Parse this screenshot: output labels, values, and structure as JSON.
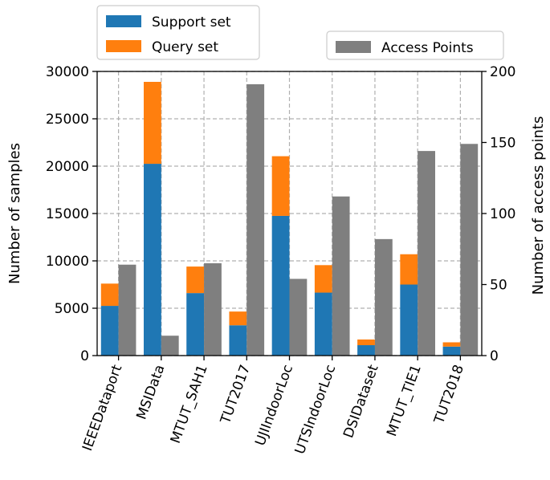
{
  "chart_data": {
    "type": "bar",
    "title": "",
    "categories": [
      "IEEEDataport",
      "MSIData",
      "MTUT_SAH1",
      "TUT2017",
      "UJIIndoorLoc",
      "UTSIndoorLoc",
      "DSIDataset",
      "MTUT_TIE1",
      "TUT2018"
    ],
    "left_axis": {
      "label": "Number of samples",
      "ylim": [
        0,
        30000
      ],
      "ticks": [
        0,
        5000,
        10000,
        15000,
        20000,
        25000,
        30000
      ],
      "tick_labels": [
        "0",
        "5000",
        "10000",
        "15000",
        "20000",
        "25000",
        "30000"
      ]
    },
    "right_axis": {
      "label": "Number of access points",
      "ylim": [
        0,
        200
      ],
      "ticks": [
        0,
        50,
        100,
        150,
        200
      ],
      "tick_labels": [
        "0",
        "50",
        "100",
        "150",
        "200"
      ]
    },
    "series": [
      {
        "name": "Support set",
        "axis": "left",
        "stack": "samples",
        "color": "#1f77b4",
        "values": [
          5250,
          20250,
          6600,
          3200,
          14750,
          6650,
          1100,
          7500,
          950
        ]
      },
      {
        "name": "Query set",
        "axis": "left",
        "stack": "samples",
        "color": "#ff7f0e",
        "values": [
          2350,
          8650,
          2800,
          1450,
          6300,
          2900,
          600,
          3200,
          450
        ]
      },
      {
        "name": "Access Points",
        "axis": "right",
        "color": "#7f7f7f",
        "values": [
          64,
          14,
          65,
          191,
          54,
          112,
          82,
          144,
          149
        ]
      }
    ],
    "grid": true,
    "legend": {
      "left_entries": [
        "Support set",
        "Query set"
      ],
      "left_placement": "top-left, above plot",
      "right_entries": [
        "Access Points"
      ],
      "right_placement": "top-right, above plot"
    }
  }
}
